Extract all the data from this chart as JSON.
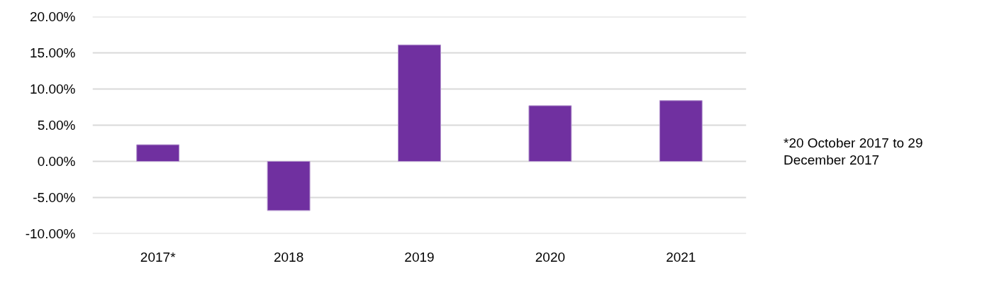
{
  "chart_data": {
    "type": "bar",
    "categories": [
      "2017*",
      "2018",
      "2019",
      "2020",
      "2021"
    ],
    "values": [
      2.3,
      -6.8,
      16.1,
      7.7,
      8.4
    ],
    "color": "#7030a0",
    "ylim": [
      -10,
      20
    ],
    "yticks": [
      {
        "value": -10,
        "label": "-10.00%"
      },
      {
        "value": -5,
        "label": "-5.00%"
      },
      {
        "value": 0,
        "label": "0.00%"
      },
      {
        "value": 5,
        "label": "5.00%"
      },
      {
        "value": 10,
        "label": "10.00%"
      },
      {
        "value": 15,
        "label": "15.00%"
      },
      {
        "value": 20,
        "label": "20.00%"
      }
    ],
    "grid": "y",
    "annotations": [
      "*20 October 2017 to 29 December 2017"
    ]
  }
}
